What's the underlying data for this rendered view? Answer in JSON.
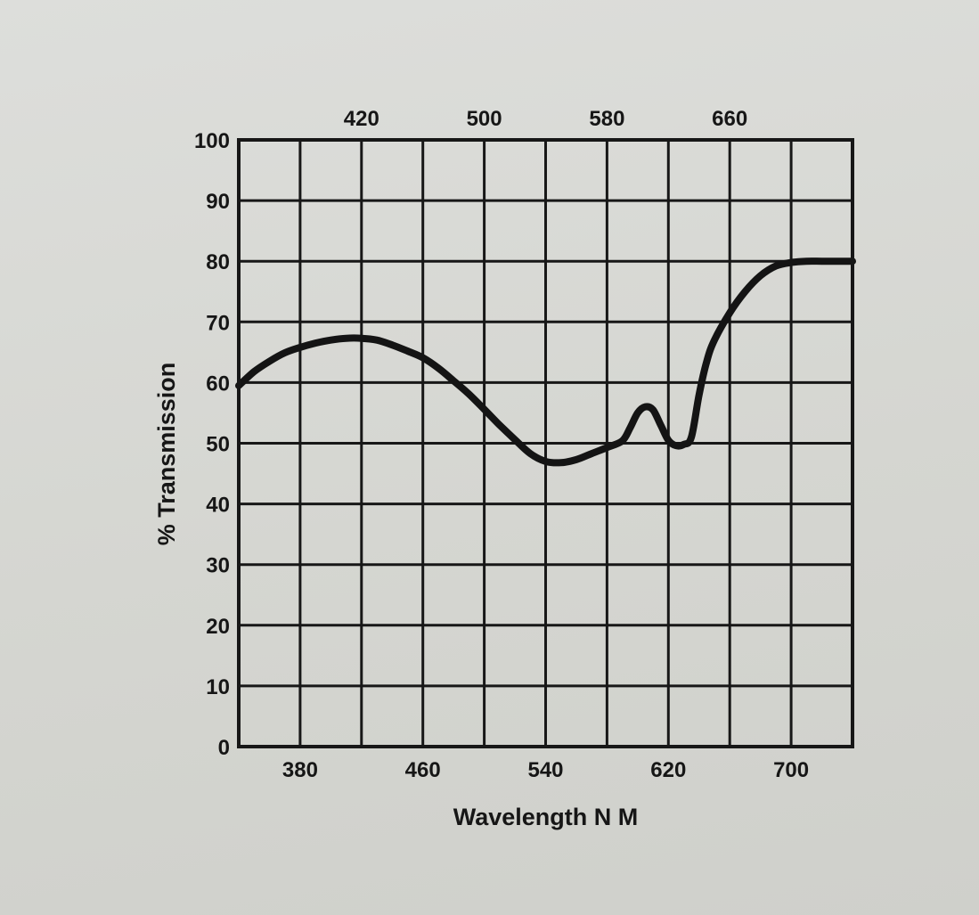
{
  "chart_data": {
    "type": "line",
    "title": "",
    "xlabel": "Wavelength N M",
    "ylabel": "% Transmission",
    "xlim": [
      340,
      740
    ],
    "ylim": [
      0,
      100
    ],
    "grid": true,
    "y_ticks": [
      0,
      10,
      20,
      30,
      40,
      50,
      60,
      70,
      80,
      90,
      100
    ],
    "x_ticks_bottom": [
      380,
      460,
      540,
      620,
      700
    ],
    "x_ticks_top": [
      420,
      500,
      580,
      660
    ],
    "x_gridlines": [
      380,
      420,
      460,
      500,
      540,
      580,
      620,
      660,
      700
    ],
    "series": [
      {
        "x": [
          340,
          350,
          360,
          370,
          380,
          390,
          400,
          410,
          420,
          430,
          440,
          450,
          460,
          470,
          480,
          490,
          500,
          510,
          520,
          530,
          540,
          550,
          560,
          570,
          580,
          590,
          595,
          600,
          605,
          610,
          615,
          620,
          625,
          630,
          635,
          640,
          645,
          650,
          660,
          670,
          680,
          690,
          700,
          710,
          720,
          730,
          740
        ],
        "y": [
          59.5,
          61.8,
          63.5,
          64.9,
          65.8,
          66.5,
          67.0,
          67.3,
          67.3,
          67.0,
          66.2,
          65.2,
          64.1,
          62.4,
          60.3,
          58.1,
          55.6,
          53.0,
          50.6,
          48.3,
          47.0,
          46.8,
          47.3,
          48.3,
          49.3,
          50.4,
          52.5,
          55.0,
          56.0,
          55.5,
          53.0,
          50.5,
          49.6,
          49.8,
          51.0,
          58.0,
          63.5,
          67.0,
          71.5,
          75.0,
          77.6,
          79.2,
          79.8,
          80.0,
          80.0,
          80.0,
          80.0
        ]
      }
    ]
  }
}
